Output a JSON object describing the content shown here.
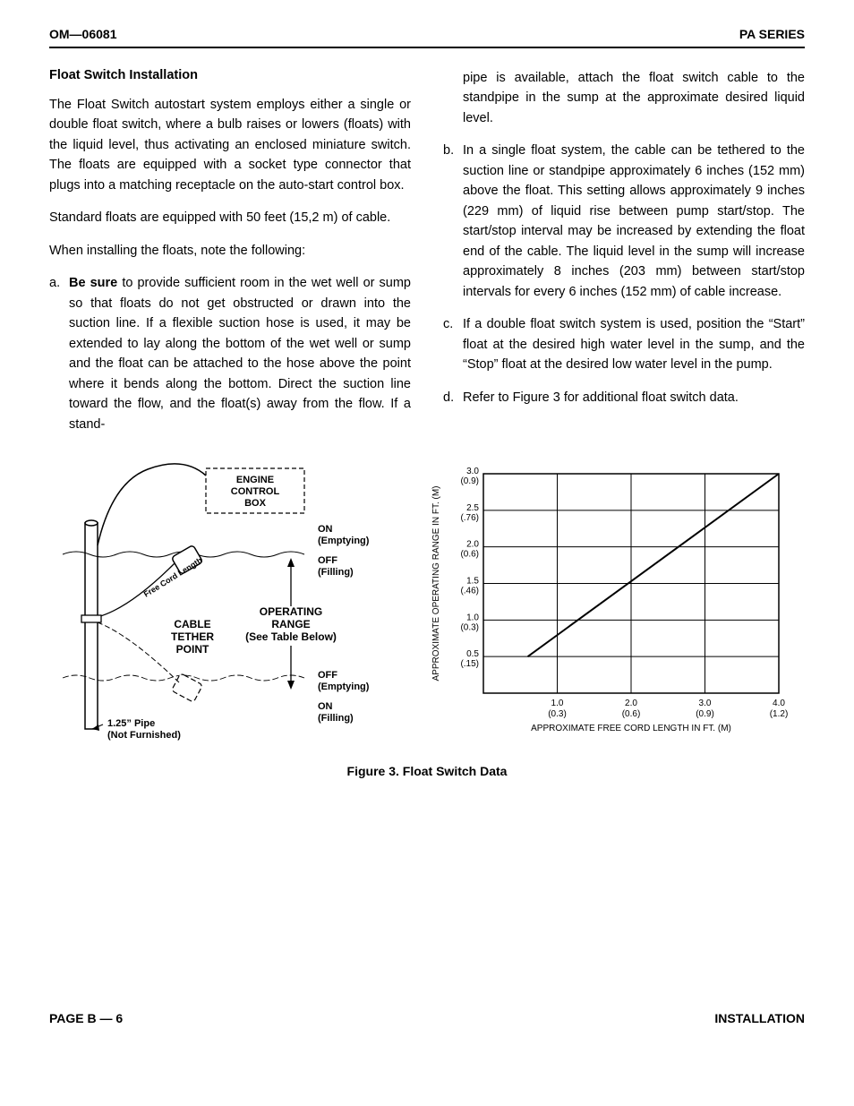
{
  "header": {
    "left": "OM—06081",
    "right": "PA SERIES"
  },
  "body": {
    "section_title": "Float Switch Installation",
    "para1": "The Float Switch autostart system employs either a single or double float switch, where a bulb raises or lowers (floats) with the liquid level, thus activating an enclosed miniature switch. The floats are equipped with a socket type connector that plugs into a matching receptacle on the auto‐start control box.",
    "para2": "Standard floats are equipped with  50 feet (15,2 m) of cable.",
    "para3": "When installing the floats, note the following:",
    "item_a_bold": "Be sure",
    "item_a_rest": " to provide sufficient room in the wet well or sump so that floats do not get ob­structed or drawn into the suction line. If a flex­ible suction hose is used, it may be extended to lay along the bottom of the wet well or sump and the float can be attached to the hose above the point where it bends along the bot­tom. Direct the suction line toward the flow, and the float(s) away from the flow. If a stand­pipe is available, attach the float switch cable to the standpipe in the sump at the approxi­mate desired liquid level.",
    "col2_a_tail": "pipe is available, attach the float switch cable to the standpipe in the sump at the approxi­mate desired liquid level.",
    "item_b": "In a single float system, the cable can be teth­ered to the suction line or standpipe approxi­mately 6 inches (152 mm) above the float. This setting allows approximately 9 inches (229 mm) of liquid rise between pump start/stop. The start/stop interval may be increased by extending the float end of the cable. The liquid level in the sump will increase approxi­mately 8 inches (203 mm) between start/stop intervals for every 6 inches (152 mm) of cable increase.",
    "item_c": "If a double float switch system is used, posi­tion the “Start” float at the desired high water level in the sump, and the “Stop” float at the desired low water level in the pump.",
    "item_d": "Refer to Figure 3 for additional float switch data."
  },
  "figure": {
    "caption": "Figure 3.  Float Switch Data",
    "diagram": {
      "engine_box_l1": "ENGINE",
      "engine_box_l2": "CONTROL",
      "engine_box_l3": "BOX",
      "free_cord": "Free Cord Length",
      "cable_tether_1": "CABLE",
      "cable_tether_2": "TETHER",
      "cable_tether_3": "POINT",
      "op_range_1": "OPERATING",
      "op_range_2": "RANGE",
      "op_range_3": "(See Table Below)",
      "on_emptying": "ON",
      "label_emptying": "(Emptying)",
      "off_filling": "OFF",
      "label_filling": "(Filling)",
      "pipe_1": "1.25” Pipe",
      "pipe_2": "(Not Furnished)"
    },
    "chart": {
      "type": "line",
      "y_axis_label": "APPROXIMATE OPERATING RANGE IN FT. (M)",
      "x_axis_label": "APPROXIMATE FREE CORD LENGTH IN FT. (M)",
      "y_ticks": [
        {
          "ft": "3.0",
          "m": "(0.9)"
        },
        {
          "ft": "2.5",
          "m": "(.76)"
        },
        {
          "ft": "2.0",
          "m": "(0.6)"
        },
        {
          "ft": "1.5",
          "m": "(.46)"
        },
        {
          "ft": "1.0",
          "m": "(0.3)"
        },
        {
          "ft": "0.5",
          "m": "(.15)"
        }
      ],
      "x_ticks": [
        {
          "ft": "1.0",
          "m": "(0.3)"
        },
        {
          "ft": "2.0",
          "m": "(0.6)"
        },
        {
          "ft": "3.0",
          "m": "(0.9)"
        },
        {
          "ft": "4.0",
          "m": "(1.2)"
        }
      ],
      "xlim": [
        0,
        4.0
      ],
      "ylim": [
        0,
        3.0
      ],
      "line_points": [
        [
          0.6,
          0.5
        ],
        [
          4.0,
          3.0
        ]
      ],
      "line_color": "#000000",
      "line_width": 2,
      "grid_color": "#000000",
      "background_color": "#ffffff",
      "tick_fontsize": 10
    }
  },
  "footer": {
    "left": "PAGE B — 6",
    "right": "INSTALLATION"
  }
}
